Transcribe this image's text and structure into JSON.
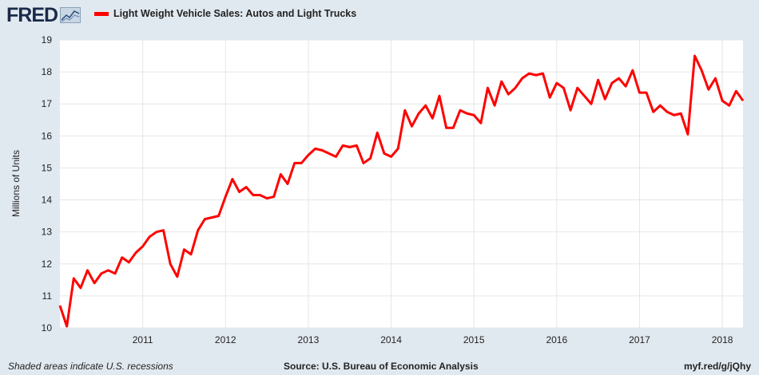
{
  "header": {
    "logo_text": "FRED",
    "logo_icon": "line-chart-icon",
    "legend_label": "Light Weight Vehicle Sales: Autos and Light Trucks",
    "legend_color": "#ff0000"
  },
  "footer": {
    "left": "Shaded areas indicate U.S. recessions",
    "source": "Source: U.S. Bureau of Economic Analysis",
    "link": "myf.red/g/jQhy"
  },
  "chart_data": {
    "type": "line",
    "ylabel": "Millions of Units",
    "ylim": [
      10,
      19
    ],
    "yticks": [
      10,
      11,
      12,
      13,
      14,
      15,
      16,
      17,
      18,
      19
    ],
    "xlim": [
      "2010-01",
      "2018-04"
    ],
    "xticks": [
      "2011",
      "2012",
      "2013",
      "2014",
      "2015",
      "2016",
      "2017",
      "2018"
    ],
    "grid": true,
    "colors": {
      "series": "#ff0000",
      "background": "#e1e9f0",
      "plot_bg": "#ffffff",
      "grid": "#e6e6e6"
    },
    "series": [
      {
        "name": "Light Weight Vehicle Sales: Autos and Light Trucks",
        "start": "2010-01",
        "frequency": "monthly",
        "values": [
          10.7,
          10.05,
          11.55,
          11.25,
          11.8,
          11.4,
          11.7,
          11.8,
          11.7,
          12.2,
          12.05,
          12.35,
          12.55,
          12.85,
          13.0,
          13.05,
          12.0,
          11.6,
          12.45,
          12.3,
          13.05,
          13.4,
          13.45,
          13.5,
          14.1,
          14.65,
          14.25,
          14.4,
          14.15,
          14.15,
          14.05,
          14.1,
          14.8,
          14.5,
          15.15,
          15.15,
          15.4,
          15.6,
          15.55,
          15.45,
          15.35,
          15.7,
          15.65,
          15.7,
          15.15,
          15.3,
          16.1,
          15.45,
          15.35,
          15.6,
          16.8,
          16.3,
          16.7,
          16.95,
          16.55,
          17.25,
          16.25,
          16.25,
          16.8,
          16.7,
          16.65,
          16.4,
          17.5,
          16.95,
          17.7,
          17.3,
          17.5,
          17.8,
          17.95,
          17.9,
          17.95,
          17.2,
          17.65,
          17.5,
          16.8,
          17.5,
          17.25,
          17.0,
          17.75,
          17.15,
          17.65,
          17.8,
          17.55,
          18.05,
          17.35,
          17.35,
          16.75,
          16.95,
          16.75,
          16.65,
          16.7,
          16.05,
          18.5,
          18.05,
          17.45,
          17.8,
          17.1,
          16.95,
          17.4,
          17.1
        ]
      }
    ]
  }
}
